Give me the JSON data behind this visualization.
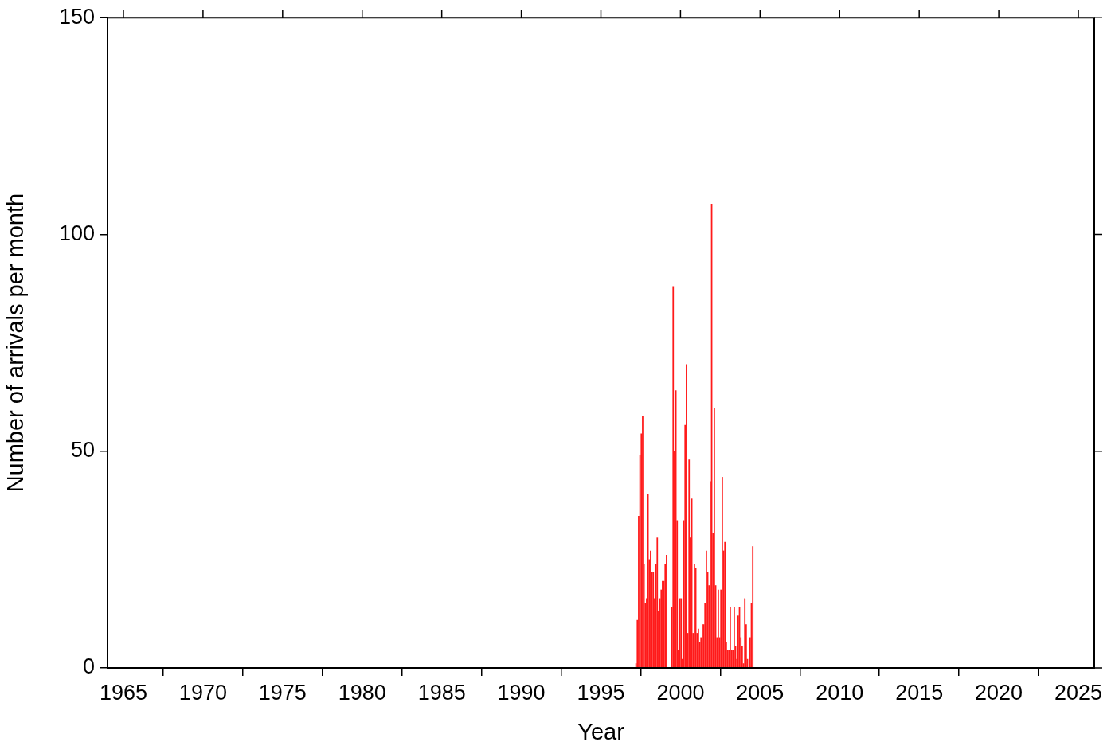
{
  "chart_data": {
    "type": "bar",
    "xlabel": "Year",
    "ylabel": "Number of arrivals per month",
    "color": "#ff1a1a",
    "grid": false,
    "legend": false,
    "x": [
      "1997-03",
      "1997-04",
      "1997-05",
      "1997-06",
      "1997-07",
      "1997-08",
      "1997-09",
      "1997-10",
      "1997-11",
      "1997-12",
      "1998-01",
      "1998-02",
      "1998-03",
      "1998-04",
      "1998-05",
      "1998-06",
      "1998-07",
      "1998-08",
      "1998-09",
      "1998-10",
      "1998-11",
      "1998-12",
      "1999-01",
      "1999-02",
      "1999-03",
      "1999-04",
      "1999-05",
      "1999-06",
      "1999-07",
      "1999-08",
      "1999-09",
      "1999-10",
      "1999-11",
      "1999-12",
      "2000-01",
      "2000-02",
      "2000-03",
      "2000-04",
      "2000-05",
      "2000-06",
      "2000-07",
      "2000-08",
      "2000-09",
      "2000-10",
      "2000-11",
      "2000-12",
      "2001-01",
      "2001-02",
      "2001-03",
      "2001-04",
      "2001-05",
      "2001-06",
      "2001-07",
      "2001-08",
      "2001-09",
      "2001-10",
      "2001-11",
      "2001-12",
      "2002-01",
      "2002-02",
      "2002-03",
      "2002-04",
      "2002-05",
      "2002-06",
      "2002-07",
      "2002-08",
      "2002-09",
      "2002-10",
      "2002-11",
      "2002-12",
      "2003-01",
      "2003-02",
      "2003-03",
      "2003-04",
      "2003-05",
      "2003-06",
      "2003-07",
      "2003-08",
      "2003-09",
      "2003-10",
      "2003-11",
      "2003-12",
      "2004-01",
      "2004-02",
      "2004-03",
      "2004-04",
      "2004-05",
      "2004-06",
      "2004-07"
    ],
    "values": [
      1,
      11,
      35,
      49,
      54,
      58,
      24,
      15,
      16,
      40,
      25,
      27,
      22,
      22,
      16,
      24,
      30,
      13,
      16,
      18,
      20,
      20,
      24,
      26,
      0,
      0,
      0,
      14,
      88,
      50,
      64,
      34,
      4,
      16,
      16,
      2,
      34,
      56,
      70,
      8,
      48,
      30,
      39,
      8,
      24,
      23,
      8,
      9,
      6,
      7,
      10,
      10,
      15,
      27,
      22,
      19,
      43,
      107,
      31,
      60,
      19,
      7,
      18,
      7,
      18,
      44,
      27,
      29,
      6,
      4,
      4,
      14,
      4,
      4,
      14,
      5,
      2,
      12,
      14,
      7,
      5,
      1,
      16,
      10,
      2,
      0,
      7,
      15,
      28
    ],
    "xlim": [
      "1964",
      "2026"
    ],
    "xticks": [
      "1965",
      "1970",
      "1975",
      "1980",
      "1985",
      "1990",
      "1995",
      "2000",
      "2005",
      "2010",
      "2015",
      "2020",
      "2025"
    ],
    "ylim": [
      0,
      150
    ],
    "yticks": [
      0,
      50,
      100,
      150
    ]
  }
}
